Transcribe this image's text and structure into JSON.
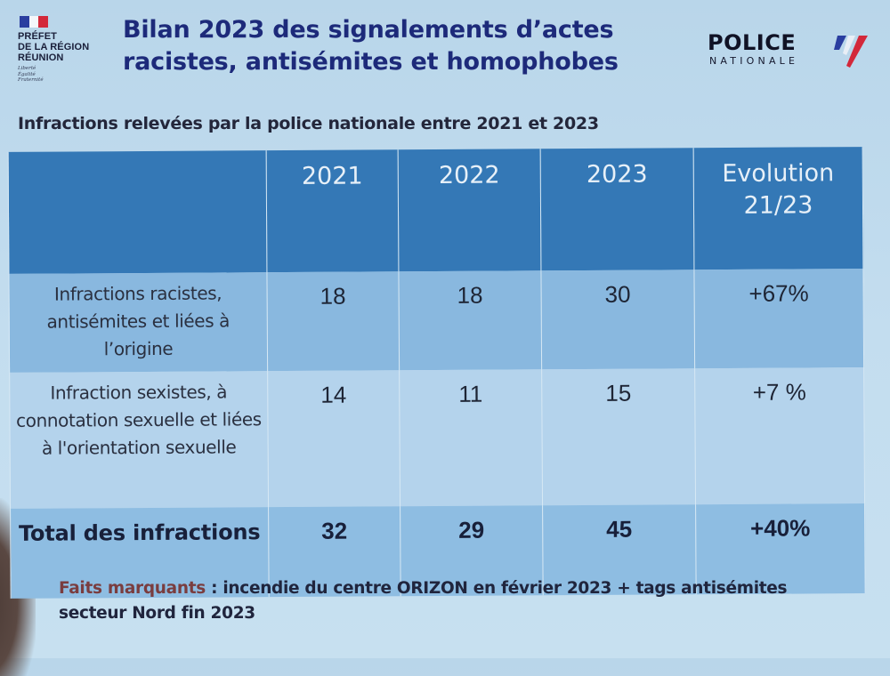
{
  "header": {
    "prefecture": {
      "line1": "PRÉFET",
      "line2": "DE LA RÉGION",
      "line3": "RÉUNION",
      "motto": [
        "Liberté",
        "Égalité",
        "Fraternité"
      ],
      "flag_colors": [
        "#2a3ea0",
        "#f4f6fa",
        "#d3283a"
      ]
    },
    "title_line1": "Bilan 2023 des signalements d’actes",
    "title_line2": "racistes, antisémites et homophobes",
    "police_logo": {
      "word": "POLICE",
      "sub": "NATIONALE"
    }
  },
  "subtitle": "Infractions relevées par la police nationale entre 2021 et 2023",
  "table": {
    "headers": [
      "",
      "2021",
      "2022",
      "2023",
      "Evolution 21/23"
    ],
    "header_evolution_line1": "Evolution",
    "header_evolution_line2": "21/23",
    "rows": [
      {
        "label": "Infractions racistes, antisémites et liées à l’origine",
        "v2021": "18",
        "v2022": "18",
        "v2023": "30",
        "evolution": "+67%"
      },
      {
        "label": "Infraction sexistes, à connotation sexuelle et liées à l'orientation sexuelle",
        "v2021": "14",
        "v2022": "11",
        "v2023": "15",
        "evolution": "+7 %"
      },
      {
        "label": "Total des infractions",
        "v2021": "32",
        "v2022": "29",
        "v2023": "45",
        "evolution": "+40%"
      }
    ]
  },
  "facts": {
    "lead": "Faits marquants",
    "text": " : incendie du centre ORIZON en février 2023 + tags antisémites secteur Nord fin 2023"
  },
  "colors": {
    "title": "#1d2a7a",
    "header_bg": "#3478b6",
    "row1_bg": "#89b8df",
    "row2_bg": "#b4d3ec",
    "total_bg": "#8ebde2",
    "facts_lead": "#7a3d3f"
  }
}
